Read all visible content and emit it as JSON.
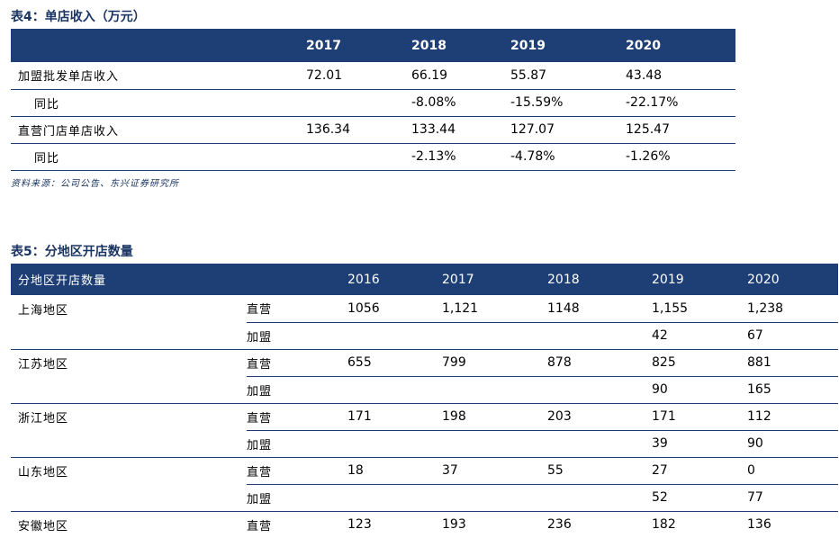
{
  "table4": {
    "title": "表4：单店收入（万元）",
    "header": [
      "",
      "2017",
      "2018",
      "2019",
      "2020"
    ],
    "rows": [
      {
        "label": "加盟批发单店收入",
        "values": [
          "72.01",
          "66.19",
          "55.87",
          "43.48"
        ]
      },
      {
        "label": "同比",
        "values": [
          "",
          "-8.08%",
          "-15.59%",
          "-22.17%"
        ]
      },
      {
        "label": "直营门店单店收入",
        "values": [
          "136.34",
          "133.44",
          "127.07",
          "125.47"
        ]
      },
      {
        "label": "同比",
        "values": [
          "",
          "-2.13%",
          "-4.78%",
          "-1.26%"
        ]
      }
    ],
    "source": "资料来源：公司公告、东兴证券研究所"
  },
  "table5": {
    "title": "表5：分地区开店数量",
    "header": [
      "分地区开店数量",
      "",
      "2016",
      "2017",
      "2018",
      "2019",
      "2020"
    ],
    "rows": [
      {
        "region": "上海地区",
        "type": "直营",
        "values": [
          "1056",
          "1,121",
          "1148",
          "1,155",
          "1,238"
        ]
      },
      {
        "region": "",
        "type": "加盟",
        "values": [
          "",
          "",
          "",
          "42",
          "67"
        ]
      },
      {
        "region": "江苏地区",
        "type": "直营",
        "values": [
          "655",
          "799",
          "878",
          "825",
          "881"
        ]
      },
      {
        "region": "",
        "type": "加盟",
        "values": [
          "",
          "",
          "",
          "90",
          "165"
        ]
      },
      {
        "region": "浙江地区",
        "type": "直营",
        "values": [
          "171",
          "198",
          "203",
          "171",
          "112"
        ]
      },
      {
        "region": "",
        "type": "加盟",
        "values": [
          "",
          "",
          "",
          "39",
          "90"
        ]
      },
      {
        "region": "山东地区",
        "type": "直营",
        "values": [
          "18",
          "37",
          "55",
          "27",
          "0"
        ]
      },
      {
        "region": "",
        "type": "加盟",
        "values": [
          "",
          "",
          "",
          "52",
          "77"
        ]
      },
      {
        "region": "安徽地区",
        "type": "直营",
        "values": [
          "123",
          "193",
          "236",
          "182",
          "136"
        ]
      }
    ]
  }
}
